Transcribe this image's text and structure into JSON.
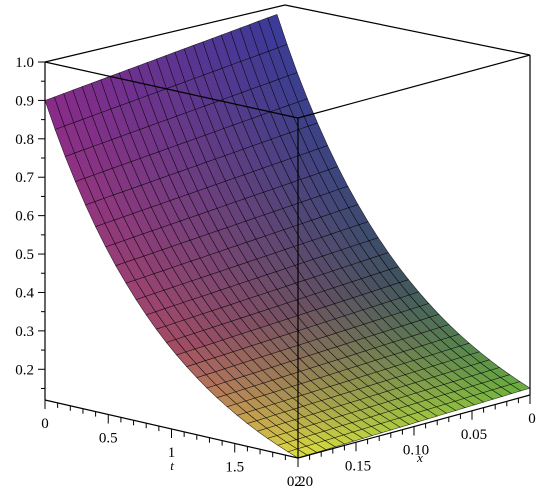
{
  "chart_data": {
    "type": "surface3d",
    "z_axis": {
      "ticks": [
        "1.0",
        "0.9",
        "0.8",
        "0.7",
        "0.6",
        "0.5",
        "0.4",
        "0.3",
        "0.2"
      ],
      "range": [
        0.12,
        1.0
      ]
    },
    "t_axis": {
      "label": "t",
      "ticks": [
        "0",
        "0.5",
        "1",
        "1.5",
        "2"
      ],
      "range": [
        0,
        2
      ]
    },
    "x_axis": {
      "label": "x",
      "ticks": [
        "0.20",
        "0.15",
        "0.10",
        "0.05",
        "0"
      ],
      "range": [
        0,
        0.2
      ]
    },
    "surface": {
      "value_at_t0": 0.9,
      "value_at_t2": 0.12,
      "grid_lines_t": 25,
      "grid_lines_x": 25
    },
    "colors": {
      "high": "#3a3a9a",
      "mid_violet": "#8a2a8a",
      "mid_orange": "#c07040",
      "low_green": "#6ab040",
      "low_yellow": "#e0e040",
      "grid": "#000000"
    }
  }
}
